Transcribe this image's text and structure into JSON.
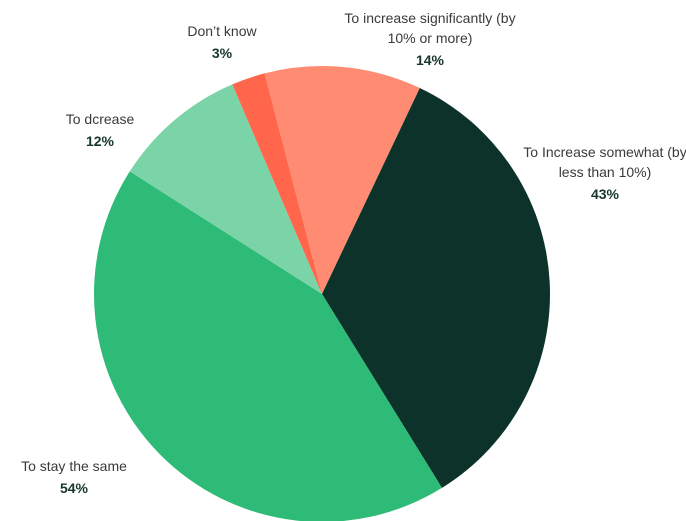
{
  "chart_data": {
    "type": "pie",
    "categories": [
      "To increase significantly (by 10% or more)",
      "To Increase somewhat (by less than 10%)",
      "To stay the same",
      "To dcrease",
      "Don’t know"
    ],
    "values": [
      14,
      43,
      54,
      12,
      3
    ],
    "value_labels": [
      "14%",
      "43%",
      "54%",
      "12%",
      "3%"
    ],
    "colors": [
      "#ff8c72",
      "#0c3229",
      "#2ebb77",
      "#7bd4a7",
      "#ff664b"
    ]
  }
}
